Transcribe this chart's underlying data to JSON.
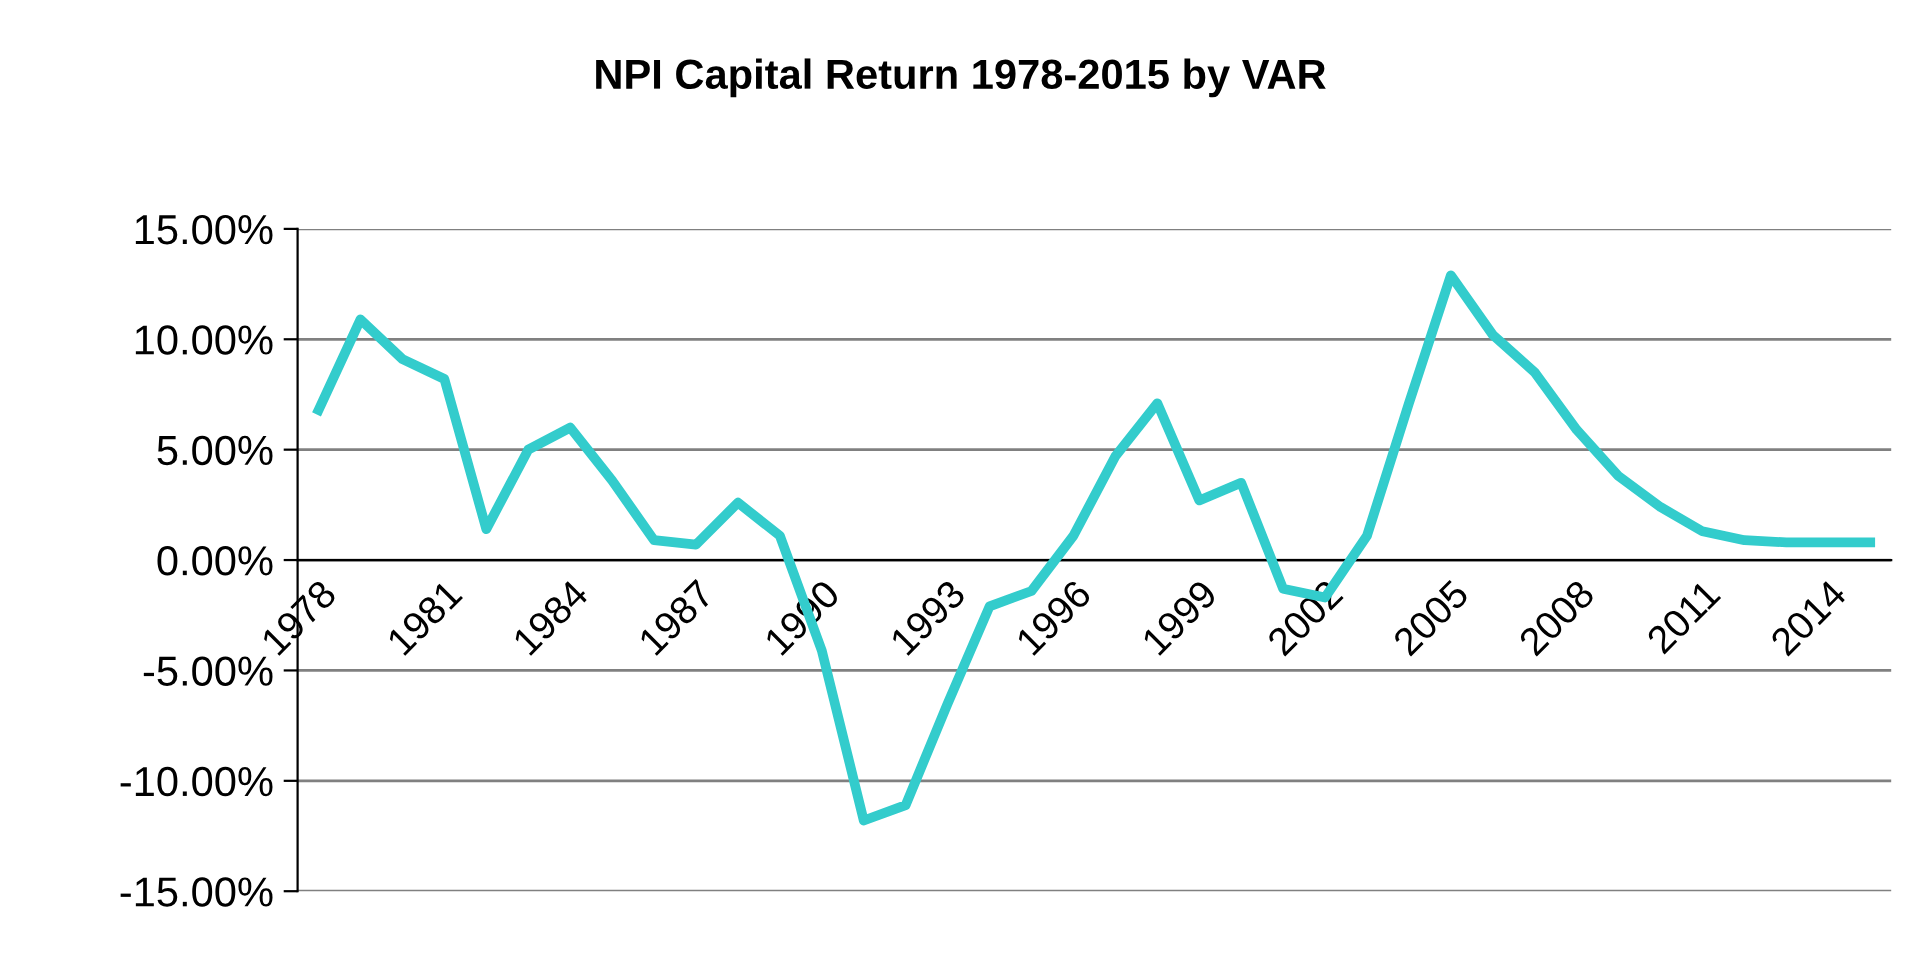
{
  "chart_data": {
    "type": "line",
    "title": "NPI Capital Return 1978-2015 by VAR",
    "categories": [
      "1978",
      null,
      null,
      "1981",
      null,
      null,
      "1984",
      null,
      null,
      "1987",
      null,
      null,
      "1990",
      null,
      null,
      "1993",
      null,
      null,
      "1996",
      null,
      null,
      "1999",
      null,
      null,
      "2002",
      null,
      null,
      "2005",
      null,
      null,
      "2008",
      null,
      null,
      "2011",
      null,
      null,
      "2014",
      null
    ],
    "series": [
      {
        "color": "#33cccc",
        "values": [
          6.8,
          10.9,
          9.1,
          8.2,
          1.4,
          5.0,
          6.0,
          3.6,
          0.9,
          0.7,
          2.6,
          1.1,
          -4.1,
          -11.8,
          -11.1,
          -6.5,
          -2.1,
          -1.4,
          1.1,
          4.7,
          7.1,
          2.7,
          3.5,
          -1.3,
          -1.7,
          1.1,
          7.1,
          12.9,
          10.2,
          8.5,
          5.9,
          3.8,
          2.4,
          1.3,
          0.9,
          0.8,
          0.8,
          0.8
        ]
      }
    ],
    "ylim": [
      -15,
      15
    ],
    "yticks": [
      {
        "value": -15,
        "label": "-15.00%"
      },
      {
        "value": -10,
        "label": "-10.00%"
      },
      {
        "value": -5,
        "label": "-5.00%"
      },
      {
        "value": 0,
        "label": "0.00%"
      },
      {
        "value": 5,
        "label": "5.00%"
      },
      {
        "value": 10,
        "label": "10.00%"
      },
      {
        "value": 15,
        "label": "15.00%"
      }
    ],
    "grid": "y",
    "marker": "none",
    "line_style": "solid"
  }
}
